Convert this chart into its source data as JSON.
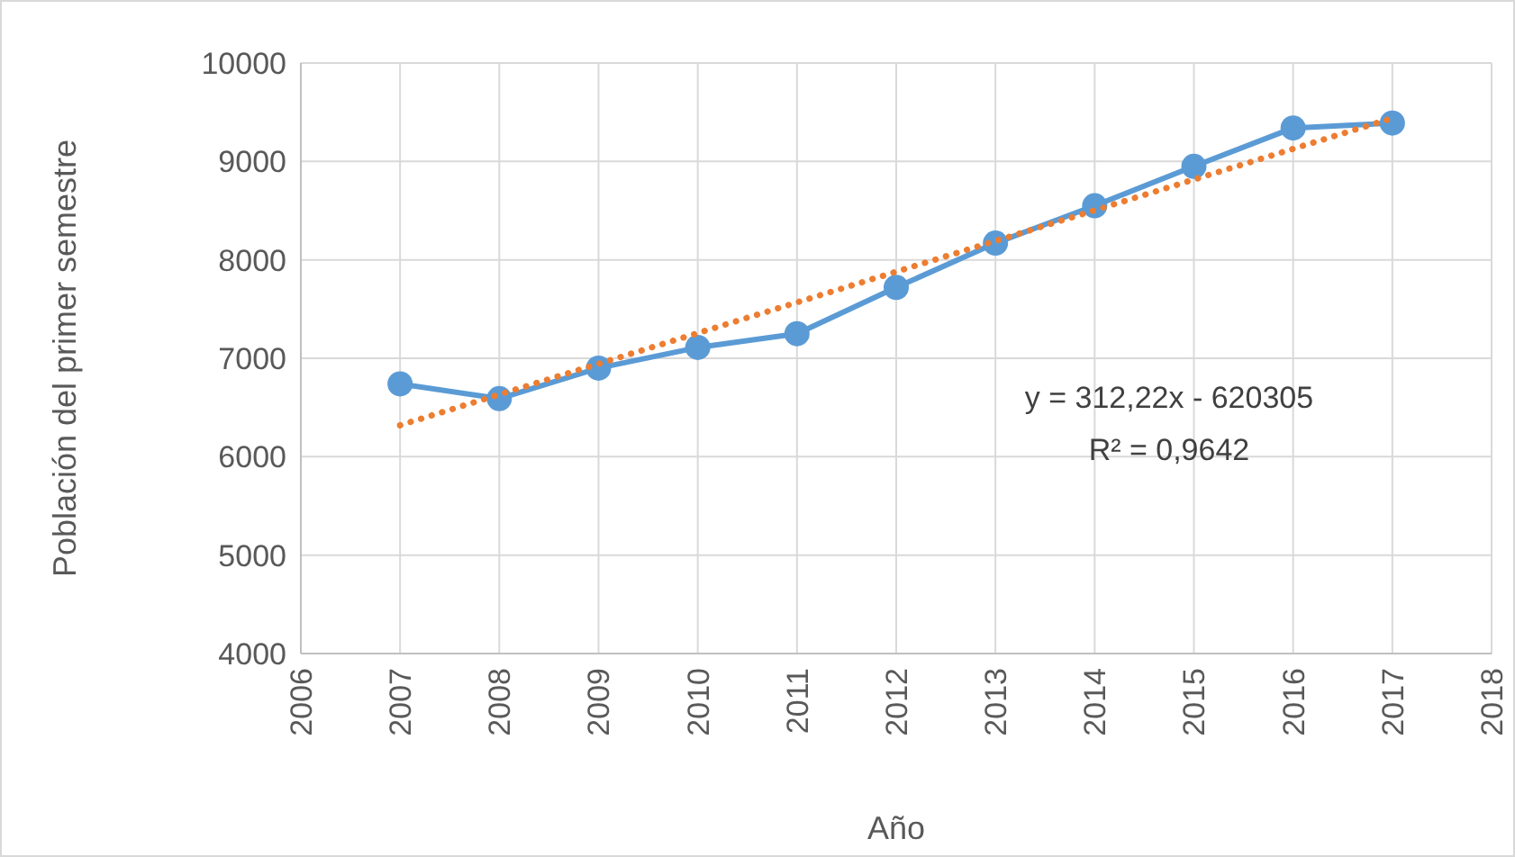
{
  "chart_data": {
    "type": "line",
    "xlabel": "Año",
    "ylabel": "Población del primer semestre",
    "xlim": [
      2006,
      2018
    ],
    "xticks": [
      2006,
      2007,
      2008,
      2009,
      2010,
      2011,
      2012,
      2013,
      2014,
      2015,
      2016,
      2017,
      2018
    ],
    "ylim": [
      4000,
      10000
    ],
    "yticks": [
      4000,
      5000,
      6000,
      7000,
      8000,
      9000,
      10000
    ],
    "grid": true,
    "series": [
      {
        "color": "#5b9bd5",
        "marker": "circle",
        "line_style": "solid",
        "x": [
          2007,
          2008,
          2009,
          2010,
          2011,
          2012,
          2013,
          2014,
          2015,
          2016,
          2017
        ],
        "values": [
          6740,
          6590,
          6900,
          7110,
          7250,
          7720,
          8170,
          8550,
          8950,
          9340,
          9390
        ]
      },
      {
        "color": "#ed7d31",
        "marker": "none",
        "line_style": "dotted",
        "x": [
          2007,
          2017
        ],
        "values": [
          6320,
          9440
        ]
      }
    ],
    "annotations": [
      "y = 312,22x - 620305",
      "R² = 0,9642"
    ]
  }
}
